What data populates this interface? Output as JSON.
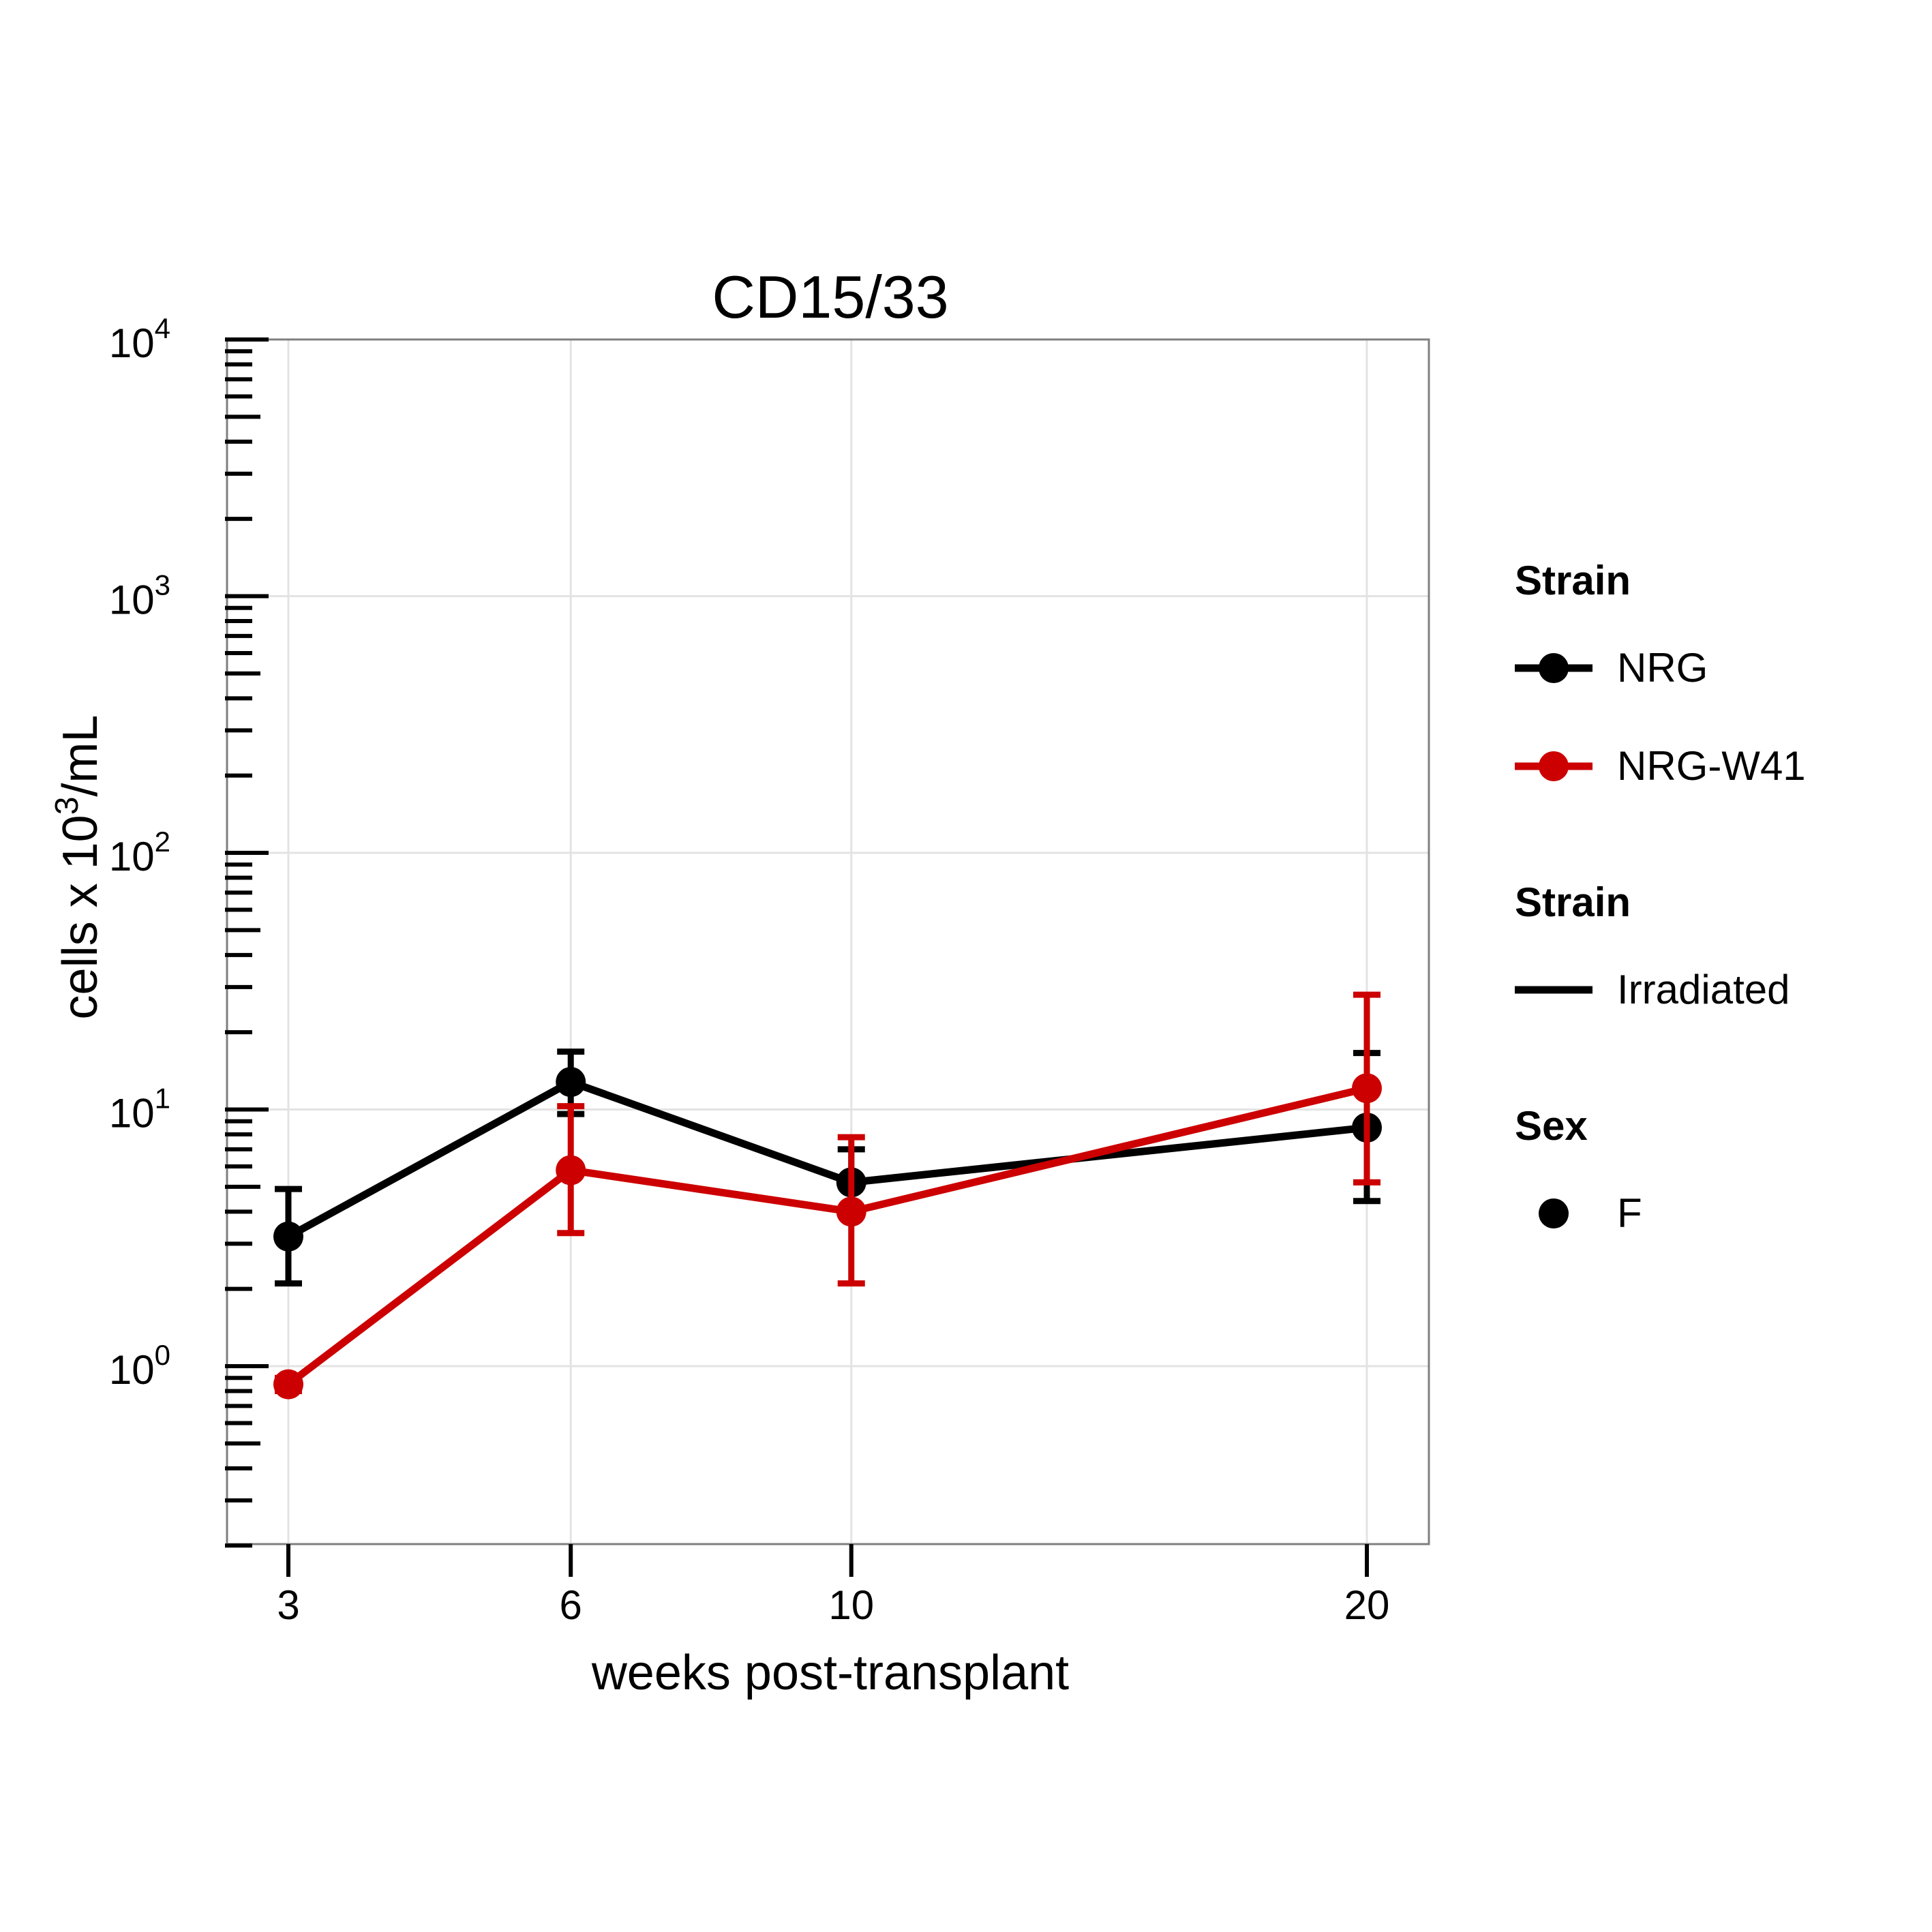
{
  "chart_data": {
    "type": "line",
    "title": "CD15/33",
    "xlabel": "weeks post-transplant",
    "ylabel": "cells x 10^3/mL",
    "ylabel_parts": {
      "pre": "cells x 10",
      "sup": "3",
      "post": "/mL"
    },
    "x_scale": "sqrt",
    "y_scale": "log10",
    "x": [
      3,
      6,
      10,
      20
    ],
    "x_tick_labels": [
      "3",
      "6",
      "10",
      "20"
    ],
    "ylim": [
      0.2,
      10000
    ],
    "y_ticks": [
      {
        "value": 1,
        "base": "10",
        "exp": "0"
      },
      {
        "value": 10,
        "base": "10",
        "exp": "1"
      },
      {
        "value": 100,
        "base": "10",
        "exp": "2"
      },
      {
        "value": 1000,
        "base": "10",
        "exp": "3"
      },
      {
        "value": 10000,
        "base": "10",
        "exp": "4"
      }
    ],
    "grid": true,
    "series": [
      {
        "name": "NRG",
        "color": "#000000",
        "values": [
          3.2,
          12.8,
          5.2,
          8.5
        ],
        "err_low": [
          2.1,
          9.6,
          3.9,
          4.4
        ],
        "err_high": [
          4.9,
          16.8,
          7.0,
          16.6
        ]
      },
      {
        "name": "NRG-W41",
        "color": "#cc0000",
        "values": [
          0.85,
          5.8,
          4.0,
          12.1
        ],
        "err_low": [
          0.8,
          3.3,
          2.1,
          5.2
        ],
        "err_high": [
          0.9,
          10.3,
          7.8,
          28.0
        ]
      }
    ],
    "legend": {
      "placement": "right",
      "groups": [
        {
          "title": "Strain",
          "entries": [
            {
              "label": "NRG",
              "kind": "line-point",
              "color": "#000000"
            },
            {
              "label": "NRG-W41",
              "kind": "line-point",
              "color": "#cc0000"
            }
          ]
        },
        {
          "title": "Strain",
          "entries": [
            {
              "label": "Irradiated",
              "kind": "line",
              "color": "#000000"
            }
          ]
        },
        {
          "title": "Sex",
          "entries": [
            {
              "label": "F",
              "kind": "point",
              "color": "#000000"
            }
          ]
        }
      ]
    }
  }
}
